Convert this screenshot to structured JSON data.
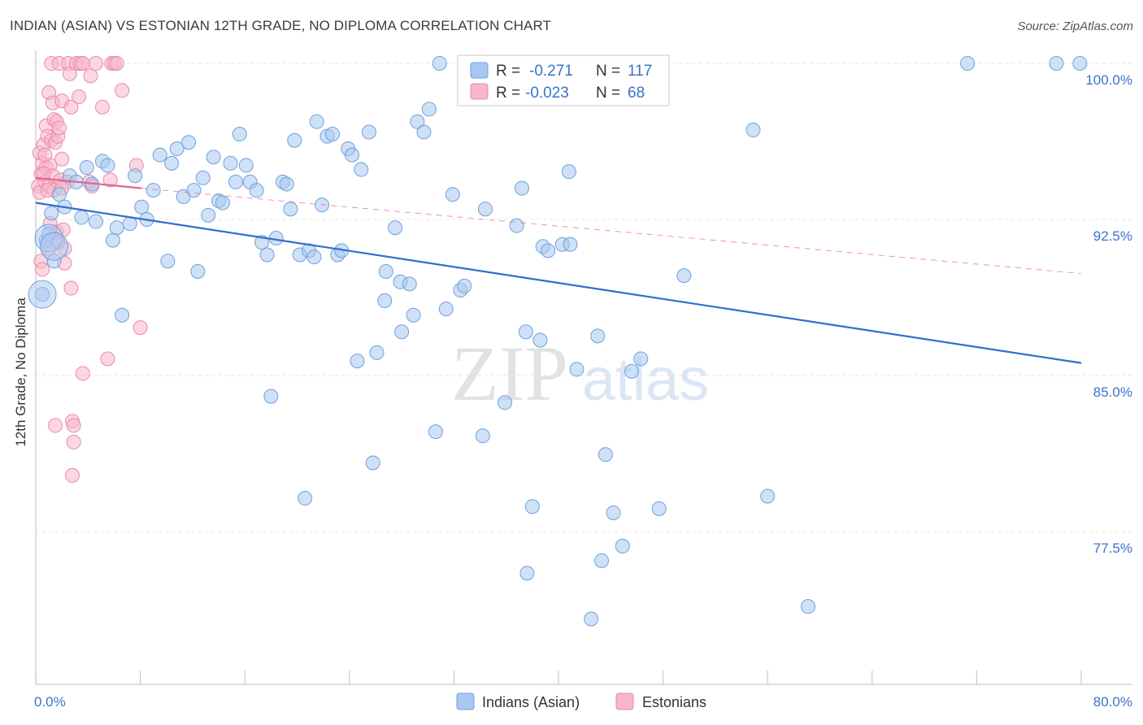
{
  "chart_data": {
    "type": "scatter",
    "title": "INDIAN (ASIAN) VS ESTONIAN 12TH GRADE, NO DIPLOMA CORRELATION CHART",
    "source": "Source: ZipAtlas.com",
    "ylabel": "12th Grade, No Diploma",
    "xlabel": "",
    "xlim": [
      0,
      80
    ],
    "ylim": [
      71.5,
      101.5
    ],
    "x_tick_labels": [
      "0.0%",
      "80.0%"
    ],
    "y_ticks": [
      {
        "value": 100.0,
        "label": "100.0%"
      },
      {
        "value": 92.5,
        "label": "92.5%"
      },
      {
        "value": 85.0,
        "label": "85.0%"
      },
      {
        "value": 77.5,
        "label": "77.5%"
      }
    ],
    "watermark": {
      "zip": "ZIP",
      "atlas": "atlas"
    },
    "stats": [
      {
        "r_label": "R =",
        "r": "-0.271",
        "n_label": "N =",
        "n": "117",
        "color": "#a8c8f0"
      },
      {
        "r_label": "R =",
        "r": "-0.023",
        "n_label": "N =",
        "n": "68",
        "color": "#f7b6cb"
      }
    ],
    "series": [
      {
        "name": "Indians (Asian)",
        "color": "#a8c8f0",
        "edge": "#6fa0dc",
        "trend": {
          "x": [
            0,
            80
          ],
          "y": [
            93.3,
            85.6
          ],
          "color": "#2f6fcc",
          "style": "solid"
        },
        "points": [
          [
            0.5,
            88.9
          ],
          [
            0.8,
            91.5
          ],
          [
            1.0,
            91.8
          ],
          [
            1.2,
            92.8
          ],
          [
            1.4,
            90.5
          ],
          [
            1.8,
            93.7
          ],
          [
            2.2,
            93.1
          ],
          [
            2.6,
            94.6
          ],
          [
            3.1,
            94.3
          ],
          [
            3.5,
            92.6
          ],
          [
            3.9,
            95.0
          ],
          [
            4.3,
            94.2
          ],
          [
            4.6,
            92.4
          ],
          [
            5.1,
            95.3
          ],
          [
            5.5,
            95.1
          ],
          [
            5.9,
            91.5
          ],
          [
            6.2,
            92.1
          ],
          [
            6.6,
            87.9
          ],
          [
            7.2,
            92.3
          ],
          [
            7.6,
            94.6
          ],
          [
            8.1,
            93.1
          ],
          [
            8.5,
            92.5
          ],
          [
            9.0,
            93.9
          ],
          [
            9.5,
            95.6
          ],
          [
            10.1,
            90.5
          ],
          [
            10.4,
            95.2
          ],
          [
            10.8,
            95.9
          ],
          [
            11.3,
            93.6
          ],
          [
            11.7,
            96.2
          ],
          [
            12.1,
            93.9
          ],
          [
            12.4,
            90.0
          ],
          [
            12.8,
            94.5
          ],
          [
            13.2,
            92.7
          ],
          [
            13.6,
            95.5
          ],
          [
            14.0,
            93.4
          ],
          [
            14.3,
            93.3
          ],
          [
            14.9,
            95.2
          ],
          [
            15.3,
            94.3
          ],
          [
            15.6,
            96.6
          ],
          [
            16.1,
            95.1
          ],
          [
            16.4,
            94.3
          ],
          [
            16.9,
            93.9
          ],
          [
            17.3,
            91.4
          ],
          [
            17.7,
            90.8
          ],
          [
            18.0,
            84.0
          ],
          [
            18.4,
            91.6
          ],
          [
            18.9,
            94.3
          ],
          [
            19.2,
            94.2
          ],
          [
            19.5,
            93.0
          ],
          [
            19.8,
            96.3
          ],
          [
            20.2,
            90.8
          ],
          [
            20.6,
            79.1
          ],
          [
            20.9,
            91.0
          ],
          [
            21.3,
            90.7
          ],
          [
            21.5,
            97.2
          ],
          [
            21.9,
            93.2
          ],
          [
            22.3,
            96.5
          ],
          [
            22.7,
            96.6
          ],
          [
            23.1,
            90.8
          ],
          [
            23.4,
            91.0
          ],
          [
            23.9,
            95.9
          ],
          [
            24.2,
            95.6
          ],
          [
            24.6,
            85.7
          ],
          [
            24.9,
            94.9
          ],
          [
            25.5,
            96.7
          ],
          [
            25.8,
            80.8
          ],
          [
            26.1,
            86.1
          ],
          [
            26.7,
            88.6
          ],
          [
            26.8,
            90.0
          ],
          [
            27.5,
            92.1
          ],
          [
            27.9,
            89.5
          ],
          [
            28.0,
            87.1
          ],
          [
            28.6,
            89.4
          ],
          [
            28.9,
            87.9
          ],
          [
            29.2,
            97.2
          ],
          [
            29.7,
            96.7
          ],
          [
            30.1,
            97.8
          ],
          [
            30.6,
            82.3
          ],
          [
            30.9,
            100.0
          ],
          [
            31.4,
            88.2
          ],
          [
            31.9,
            93.7
          ],
          [
            32.5,
            89.1
          ],
          [
            32.8,
            89.3
          ],
          [
            34.2,
            82.1
          ],
          [
            34.4,
            93.0
          ],
          [
            35.9,
            83.7
          ],
          [
            36.8,
            92.2
          ],
          [
            37.2,
            94.0
          ],
          [
            37.6,
            75.5
          ],
          [
            37.5,
            87.1
          ],
          [
            38.0,
            78.7
          ],
          [
            38.6,
            86.7
          ],
          [
            38.8,
            91.2
          ],
          [
            39.2,
            91.0
          ],
          [
            40.3,
            91.3
          ],
          [
            40.9,
            91.3
          ],
          [
            40.8,
            94.8
          ],
          [
            41.4,
            85.3
          ],
          [
            42.5,
            73.3
          ],
          [
            43.0,
            86.9
          ],
          [
            43.3,
            76.1
          ],
          [
            43.6,
            81.2
          ],
          [
            44.2,
            78.4
          ],
          [
            44.9,
            76.8
          ],
          [
            45.6,
            85.2
          ],
          [
            46.3,
            85.8
          ],
          [
            46.9,
            100.0
          ],
          [
            47.7,
            78.6
          ],
          [
            49.6,
            89.8
          ],
          [
            54.9,
            96.8
          ],
          [
            56.0,
            79.2
          ],
          [
            59.1,
            73.9
          ],
          [
            71.3,
            100.0
          ],
          [
            78.1,
            100.0
          ],
          [
            79.9,
            100.0
          ]
        ],
        "big_points": [
          [
            0.5,
            88.9
          ],
          [
            1.0,
            91.6
          ],
          [
            1.4,
            91.2
          ]
        ]
      },
      {
        "name": "Estonians",
        "color": "#f7b6cb",
        "edge": "#e98aa9",
        "trend": {
          "x": [
            0,
            8.1
          ],
          "y": [
            94.5,
            94.0
          ],
          "color": "#e8628e",
          "style": "solid",
          "ext_x": [
            8.1,
            80
          ],
          "ext_y": [
            94.0,
            89.9
          ],
          "ext_style": "dashed"
        },
        "points": [
          [
            0.2,
            94.1
          ],
          [
            0.3,
            95.7
          ],
          [
            0.3,
            93.8
          ],
          [
            0.4,
            94.7
          ],
          [
            0.5,
            95.2
          ],
          [
            0.6,
            96.1
          ],
          [
            0.7,
            94.3
          ],
          [
            0.8,
            95.0
          ],
          [
            0.8,
            97.0
          ],
          [
            0.9,
            96.5
          ],
          [
            1.0,
            94.1
          ],
          [
            1.0,
            98.6
          ],
          [
            1.1,
            95.1
          ],
          [
            1.1,
            92.3
          ],
          [
            1.2,
            100.0
          ],
          [
            1.2,
            96.3
          ],
          [
            1.3,
            98.1
          ],
          [
            1.3,
            94.6
          ],
          [
            1.4,
            97.3
          ],
          [
            1.4,
            93.9
          ],
          [
            1.5,
            82.6
          ],
          [
            1.5,
            96.2
          ],
          [
            1.6,
            97.2
          ],
          [
            1.6,
            91.9
          ],
          [
            1.7,
            96.5
          ],
          [
            1.8,
            96.9
          ],
          [
            1.8,
            100.0
          ],
          [
            1.9,
            94.4
          ],
          [
            2.0,
            98.2
          ],
          [
            2.0,
            95.4
          ],
          [
            2.1,
            92.0
          ],
          [
            2.2,
            91.1
          ],
          [
            2.2,
            90.4
          ],
          [
            2.4,
            94.3
          ],
          [
            2.5,
            100.0
          ],
          [
            2.6,
            99.5
          ],
          [
            2.7,
            97.9
          ],
          [
            2.7,
            89.2
          ],
          [
            2.8,
            80.2
          ],
          [
            2.8,
            82.8
          ],
          [
            2.9,
            81.8
          ],
          [
            2.9,
            82.6
          ],
          [
            3.1,
            100.0
          ],
          [
            3.3,
            98.4
          ],
          [
            3.4,
            100.0
          ],
          [
            3.6,
            100.0
          ],
          [
            3.6,
            85.1
          ],
          [
            4.1,
            94.3
          ],
          [
            4.2,
            99.4
          ],
          [
            4.3,
            94.1
          ],
          [
            4.6,
            100.0
          ],
          [
            5.1,
            97.9
          ],
          [
            5.5,
            85.8
          ],
          [
            5.7,
            94.4
          ],
          [
            5.8,
            100.0
          ],
          [
            6.0,
            100.0
          ],
          [
            6.2,
            100.0
          ],
          [
            6.6,
            98.7
          ],
          [
            7.7,
            95.1
          ],
          [
            8.0,
            87.3
          ],
          [
            0.4,
            90.5
          ],
          [
            0.5,
            90.1
          ],
          [
            0.6,
            94.7
          ],
          [
            0.7,
            95.6
          ],
          [
            0.9,
            93.9
          ],
          [
            1.7,
            91.4
          ],
          [
            2.0,
            94.0
          ],
          [
            1.0,
            91.1
          ]
        ]
      }
    ]
  }
}
